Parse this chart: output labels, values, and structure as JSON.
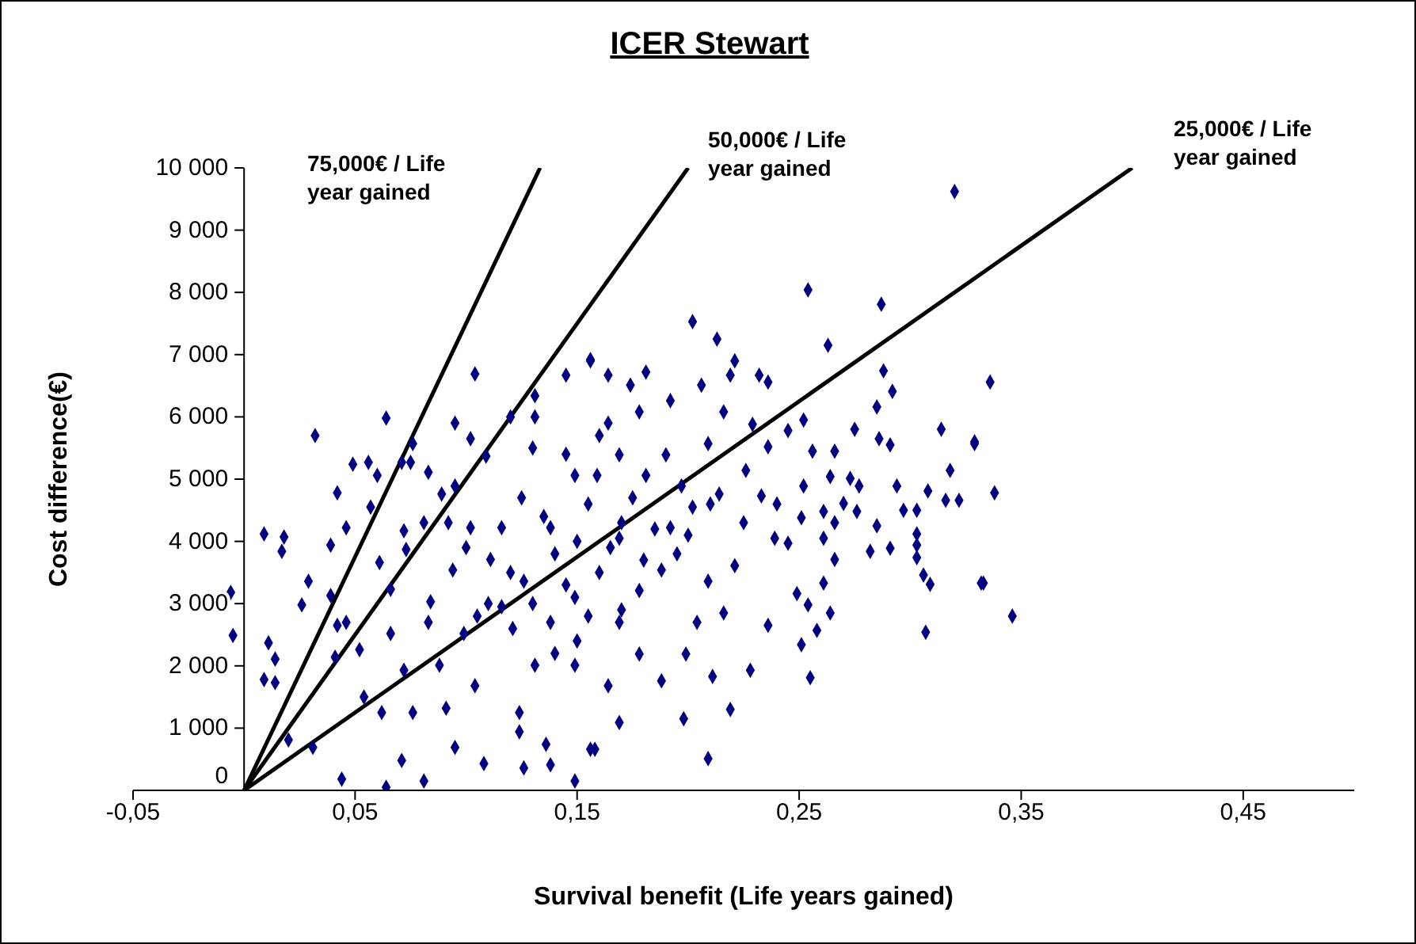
{
  "chart_data": {
    "type": "scatter",
    "title": "ICER Stewart",
    "xlabel": "Survival benefit (Life years gained)",
    "ylabel": "Cost difference(€)",
    "xlim": [
      -0.05,
      0.5
    ],
    "xticks": [
      {
        "value": -0.05,
        "label": "-0,05"
      },
      {
        "value": 0.05,
        "label": "0,05"
      },
      {
        "value": 0.15,
        "label": "0,15"
      },
      {
        "value": 0.25,
        "label": "0,25"
      },
      {
        "value": 0.35,
        "label": "0,35"
      },
      {
        "value": 0.45,
        "label": "0,45"
      }
    ],
    "ylim": [
      0,
      10000
    ],
    "yticks": [
      0,
      {
        "value": 1000,
        "label": "1 000"
      },
      {
        "value": 2000,
        "label": "2 000"
      },
      {
        "value": 3000,
        "label": "3 000"
      },
      {
        "value": 4000,
        "label": "4 000"
      },
      {
        "value": 5000,
        "label": "5 000"
      },
      {
        "value": 6000,
        "label": "6 000"
      },
      {
        "value": 7000,
        "label": "7 000"
      },
      {
        "value": 8000,
        "label": "8 000"
      },
      {
        "value": 9000,
        "label": "9 000"
      },
      {
        "value": 10000,
        "label": "10 000"
      }
    ],
    "annotations": [
      "75,000€ / Life year gained",
      "50,000€ / Life year gained",
      "25,000€ / Life year gained"
    ],
    "series": [
      {
        "marker": "diamond",
        "color": "#000080",
        "x": [
          -0.006,
          -0.005,
          0.009,
          0.018,
          0.017,
          0.011,
          0.014,
          0.009,
          0.014,
          0.02,
          0.031,
          0.026,
          0.029,
          0.032,
          0.039,
          0.042,
          0.046,
          0.049,
          0.041,
          0.044,
          0.039,
          0.042,
          0.046,
          0.052,
          0.054,
          0.056,
          0.057,
          0.06,
          0.064,
          0.064,
          0.061,
          0.062,
          0.066,
          0.071,
          0.075,
          0.076,
          0.072,
          0.073,
          0.066,
          0.072,
          0.071,
          0.076,
          0.081,
          0.081,
          0.083,
          0.084,
          0.089,
          0.095,
          0.092,
          0.094,
          0.102,
          0.104,
          0.095,
          0.088,
          0.091,
          0.095,
          0.108,
          0.099,
          0.104,
          0.109,
          0.111,
          0.116,
          0.124,
          0.124,
          0.126,
          0.131,
          0.131,
          0.136,
          0.138,
          0.145,
          0.149,
          0.156,
          0.156,
          0.159,
          0.149,
          0.138,
          0.126,
          0.116,
          0.121,
          0.138,
          0.149,
          0.149,
          0.131,
          0.102,
          0.083,
          0.32,
          0.254,
          0.287,
          0.263,
          0.202,
          0.213,
          0.221,
          0.288,
          0.292,
          0.275,
          0.285,
          0.291,
          0.314,
          0.329,
          0.286,
          0.264,
          0.266,
          0.273,
          0.277,
          0.294,
          0.318,
          0.308,
          0.316,
          0.322,
          0.297,
          0.303,
          0.276,
          0.27,
          0.261,
          0.266,
          0.285,
          0.303,
          0.303,
          0.291,
          0.282,
          0.266,
          0.261,
          0.332,
          0.306,
          0.309,
          0.303,
          0.261,
          0.254,
          0.264,
          0.258,
          0.251,
          0.307,
          0.255,
          0.228,
          0.236,
          0.219,
          0.211,
          0.209,
          0.198,
          0.169,
          0.249,
          0.245,
          0.251,
          0.252,
          0.256,
          0.252,
          0.245,
          0.236,
          0.229,
          0.232,
          0.236,
          0.219,
          0.206,
          0.181,
          0.174,
          0.164,
          0.156,
          0.226,
          0.214,
          0.202,
          0.233,
          0.239,
          0.221,
          0.209,
          0.216,
          0.204,
          0.199,
          0.188,
          0.178,
          0.169,
          0.164,
          0.158,
          0.188,
          0.178,
          0.169,
          0.192,
          0.197,
          0.19,
          0.181,
          0.169,
          0.164,
          0.178,
          0.192,
          0.209,
          0.216,
          0.336,
          0.329,
          0.338,
          0.333,
          0.346,
          0.14,
          0.15,
          0.16,
          0.17,
          0.13,
          0.12,
          0.155,
          0.165,
          0.175,
          0.185,
          0.195,
          0.135,
          0.125,
          0.145,
          0.155,
          0.17,
          0.18,
          0.2,
          0.21,
          0.11,
          0.1,
          0.105,
          0.145,
          0.16,
          0.13,
          0.12,
          0.15,
          0.14,
          0.225,
          0.24
        ],
        "values": [
          3180,
          2490,
          4120,
          4070,
          3840,
          2370,
          2110,
          1780,
          1730,
          810,
          690,
          2980,
          3360,
          5700,
          3940,
          4780,
          4220,
          5240,
          2140,
          180,
          3130,
          2650,
          2700,
          2260,
          1500,
          5270,
          4550,
          5060,
          5980,
          50,
          3660,
          1250,
          3230,
          5270,
          5270,
          5570,
          4170,
          3870,
          2520,
          1930,
          480,
          1250,
          150,
          4300,
          5110,
          3030,
          4760,
          5900,
          4300,
          3540,
          5650,
          6690,
          4890,
          2010,
          1320,
          690,
          430,
          2520,
          1680,
          5370,
          3710,
          2950,
          1250,
          940,
          360,
          6340,
          6000,
          740,
          410,
          6670,
          150,
          6920,
          660,
          5060,
          5060,
          4220,
          3360,
          4220,
          2600,
          2700,
          3100,
          2010,
          2010,
          4220,
          2700,
          9620,
          8040,
          7810,
          7150,
          7530,
          7250,
          6900,
          6740,
          6410,
          5800,
          6160,
          5550,
          5800,
          5600,
          5650,
          5040,
          5450,
          5010,
          4890,
          4890,
          5140,
          4810,
          4660,
          4660,
          4500,
          4500,
          4480,
          4610,
          4480,
          4300,
          4250,
          4120,
          3940,
          3890,
          3840,
          3710,
          4050,
          3330,
          3460,
          3310,
          3740,
          3330,
          2980,
          2850,
          2570,
          2340,
          2540,
          1810,
          1930,
          2650,
          1300,
          1830,
          510,
          1150,
          1090,
          3160,
          3970,
          4380,
          4890,
          5450,
          5950,
          5780,
          5520,
          5880,
          6670,
          6560,
          6670,
          6510,
          6720,
          6510,
          6670,
          6900,
          5140,
          4760,
          4550,
          4730,
          4050,
          3610,
          3360,
          2850,
          2700,
          2190,
          1760,
          2190,
          2700,
          1680,
          660,
          3540,
          3210,
          4050,
          4220,
          4890,
          5390,
          5060,
          5390,
          5900,
          6080,
          6260,
          5570,
          6080,
          6560,
          5570,
          4780,
          3330,
          2800,
          3800,
          4000,
          3500,
          4300,
          3000,
          3500,
          4600,
          3900,
          4700,
          4200,
          3800,
          4400,
          4700,
          3300,
          2800,
          2900,
          3700,
          4100,
          4600,
          3000,
          3900,
          2800,
          5400,
          5700,
          5500,
          6000,
          2400,
          2200,
          4300,
          4600
        ]
      },
      {
        "type": "line",
        "color": "#000000",
        "x": [
          0,
          0.1333
        ],
        "values": [
          0,
          10000
        ]
      },
      {
        "type": "line",
        "color": "#000000",
        "x": [
          0,
          0.2
        ],
        "values": [
          0,
          10000
        ]
      },
      {
        "type": "line",
        "color": "#000000",
        "x": [
          0,
          0.4
        ],
        "values": [
          0,
          10000
        ]
      }
    ]
  }
}
